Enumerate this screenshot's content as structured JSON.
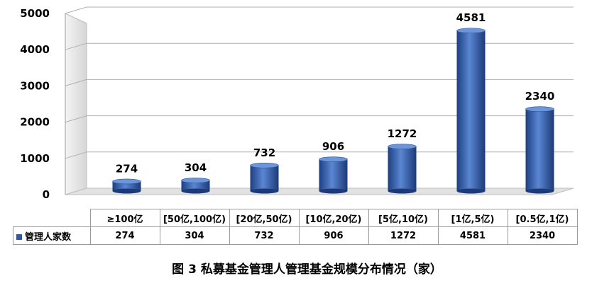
{
  "chart_data": {
    "type": "bar",
    "categories": [
      "≥100亿",
      "[50亿,100亿)",
      "[20亿,50亿)",
      "[10亿,20亿)",
      "[5亿,10亿)",
      "[1亿,5亿)",
      "[0.5亿,1亿)"
    ],
    "series": [
      {
        "name": "管理人家数",
        "values": [
          274,
          304,
          732,
          906,
          1272,
          4581,
          2340
        ]
      }
    ],
    "yticks": [
      0,
      1000,
      2000,
      3000,
      4000,
      5000
    ],
    "ylim": [
      0,
      5000
    ],
    "grid": true,
    "data_table": true,
    "bar_color": "#2f58a6",
    "title": "图 3  私募基金管理人管理基金规模分布情况（家）"
  }
}
